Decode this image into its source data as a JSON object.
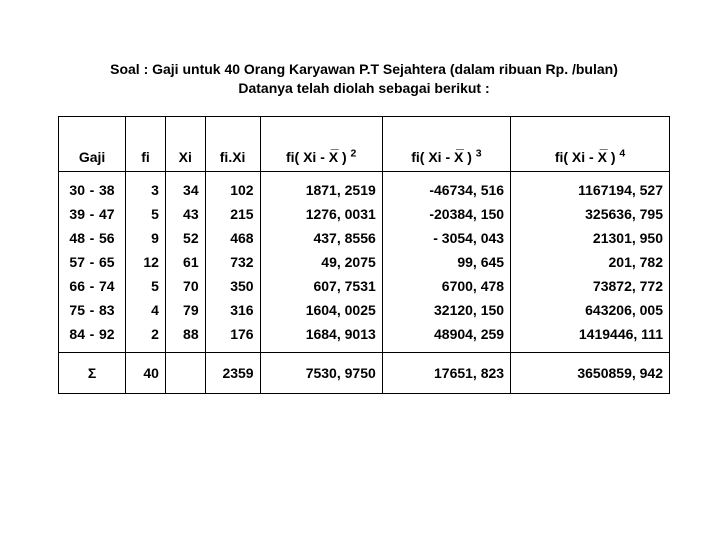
{
  "title_line1": "Soal : Gaji untuk 40 Orang Karyawan P.T Sejahtera (dalam ribuan Rp. /bulan)",
  "title_line2": "Datanya telah diolah sebagai berikut :",
  "headers": {
    "gaji": "Gaji",
    "fi": "fi",
    "xi": "Xi",
    "fixi": "fi.Xi",
    "p2_pre": "fi( Xi  -  ",
    "p2_x": "X",
    "p2_post": " ) ",
    "p2_sup": "2",
    "p3_pre": "fi( Xi  -  ",
    "p3_x": "X",
    "p3_post": " ) ",
    "p3_sup": "3",
    "p4_pre": "fi( Xi  -  ",
    "p4_x": "X",
    "p4_post": " ) ",
    "p4_sup": "4"
  },
  "rows": [
    {
      "ga": "30",
      "gb": "38",
      "fi": "3",
      "xi": "34",
      "fixi": "102",
      "p2": "1871, 2519",
      "p3": "-46734, 516",
      "p4": "1167194, 527"
    },
    {
      "ga": "39",
      "gb": "47",
      "fi": "5",
      "xi": "43",
      "fixi": "215",
      "p2": "1276, 0031",
      "p3": "-20384, 150",
      "p4": "325636, 795"
    },
    {
      "ga": "48",
      "gb": "56",
      "fi": "9",
      "xi": "52",
      "fixi": "468",
      "p2": "437, 8556",
      "p3": "- 3054, 043",
      "p4": "21301, 950"
    },
    {
      "ga": "57",
      "gb": "65",
      "fi": "12",
      "xi": "61",
      "fixi": "732",
      "p2": "49, 2075",
      "p3": "99, 645",
      "p4": "201, 782"
    },
    {
      "ga": "66",
      "gb": "74",
      "fi": "5",
      "xi": "70",
      "fixi": "350",
      "p2": "607, 7531",
      "p3": "6700, 478",
      "p4": "73872, 772"
    },
    {
      "ga": "75",
      "gb": "83",
      "fi": "4",
      "xi": "79",
      "fixi": "316",
      "p2": "1604, 0025",
      "p3": "32120, 150",
      "p4": "643206, 005"
    },
    {
      "ga": "84",
      "gb": "92",
      "fi": "2",
      "xi": "88",
      "fixi": "176",
      "p2": "1684, 9013",
      "p3": "48904, 259",
      "p4": "1419446, 111"
    }
  ],
  "totals": {
    "sigma": "Σ",
    "fi": "40",
    "xi": "",
    "fixi": "2359",
    "p2": "7530, 9750",
    "p3": "17651, 823",
    "p4": "3650859, 942"
  },
  "gaji_dash": "-"
}
